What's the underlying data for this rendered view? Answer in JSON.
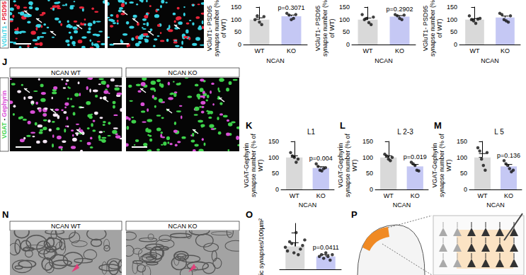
{
  "figure": {
    "panel_letters": [
      "J",
      "K",
      "L",
      "M",
      "N",
      "O",
      "P"
    ],
    "top_images": {
      "stain": "VGluT1 - PSD95",
      "stain_colors": [
        "#36d3e3",
        "#e8253a"
      ]
    },
    "j_images": {
      "labels": [
        "NCAN WT",
        "NCAN KO"
      ],
      "stain": "VGAT - Gephyrin",
      "stain_colors": [
        "#3ed14a",
        "#d94fd6"
      ]
    },
    "n_images": {
      "labels": [
        "NCAN WT",
        "NCAN KO"
      ]
    }
  },
  "chart_data": [
    {
      "type": "bar",
      "y_label": "VGluT1- PSD95 synapse number (% of WT)",
      "x_label": "NCAN",
      "categories": [
        "WT",
        "KO"
      ],
      "values": [
        100,
        113
      ],
      "errors": [
        7,
        5
      ],
      "points": [
        [
          100,
          115,
          90,
          80,
          112
        ],
        [
          125,
          118,
          100,
          105,
          120
        ]
      ],
      "colors": [
        "#d9d9d9",
        "#c5c8f4"
      ],
      "annotation": "p=0.3071",
      "ylim": [
        0,
        150
      ],
      "yticks": [
        0,
        50,
        100,
        150
      ]
    },
    {
      "type": "bar",
      "y_label": "VGluT1- PSD95 synapse number (% of WT)",
      "x_label": "NCAN",
      "categories": [
        "WT",
        "KO"
      ],
      "values": [
        100,
        112
      ],
      "errors": [
        6,
        4
      ],
      "points": [
        [
          120,
          100,
          105,
          88,
          80,
          110
        ],
        [
          120,
          115,
          105,
          100,
          118
        ]
      ],
      "colors": [
        "#d9d9d9",
        "#c5c8f4"
      ],
      "annotation": "p=0.2902",
      "ylim": [
        0,
        150
      ],
      "yticks": [
        0,
        50,
        100,
        150
      ]
    },
    {
      "type": "bar",
      "y_label": "VGluT1- PSD95 synapse number (% of WT)",
      "x_label": "NCAN",
      "categories": [
        "WT",
        "KO"
      ],
      "values": [
        100,
        108
      ],
      "errors": [
        4,
        6
      ],
      "points": [
        [
          115,
          100,
          95,
          85,
          102,
          105
        ],
        [
          125,
          120,
          100,
          95,
          90,
          115
        ]
      ],
      "colors": [
        "#d9d9d9",
        "#c5c8f4"
      ],
      "ylim": [
        0,
        150
      ],
      "yticks": [
        0,
        50,
        100,
        150
      ]
    },
    {
      "type": "bar",
      "title": "L1",
      "y_label": "VGAT-Gephyrin synapse number (% of WT)",
      "x_label": "NCAN",
      "categories": [
        "WT",
        "KO"
      ],
      "values": [
        100,
        67
      ],
      "errors": [
        5,
        4
      ],
      "points": [
        [
          115,
          105,
          100,
          85,
          95
        ],
        [
          80,
          72,
          60,
          58,
          65,
          68
        ]
      ],
      "colors": [
        "#d9d9d9",
        "#c5c8f4"
      ],
      "annotation": "p=0.004",
      "ylim": [
        0,
        150
      ],
      "yticks": [
        0,
        50,
        100,
        150
      ]
    },
    {
      "type": "bar",
      "title": "L 2-3",
      "y_label": "VGAT-Gephyrin synapse number (% of WT)",
      "x_label": "NCAN",
      "categories": [
        "WT",
        "KO"
      ],
      "values": [
        100,
        72
      ],
      "errors": [
        5,
        6
      ],
      "points": [
        [
          110,
          105,
          95,
          90,
          100
        ],
        [
          85,
          80,
          75,
          60,
          58
        ]
      ],
      "colors": [
        "#d9d9d9",
        "#c5c8f4"
      ],
      "annotation": "p=0.019",
      "ylim": [
        0,
        150
      ],
      "yticks": [
        0,
        50,
        100,
        150
      ]
    },
    {
      "type": "bar",
      "title": "L 5",
      "y_label": "VGAT-Gephyrin synapse number (% of WT)",
      "x_label": "NCAN",
      "categories": [
        "WT",
        "KO"
      ],
      "values": [
        100,
        72
      ],
      "errors": [
        12,
        6
      ],
      "points": [
        [
          130,
          120,
          95,
          75,
          60,
          115
        ],
        [
          90,
          80,
          75,
          65,
          55,
          60
        ]
      ],
      "colors": [
        "#d9d9d9",
        "#c5c8f4"
      ],
      "annotation": "p=0.136",
      "ylim": [
        0,
        150
      ],
      "yticks": [
        0,
        50,
        100,
        150
      ]
    },
    {
      "type": "bar",
      "y_label": "ic synapses/100µm²",
      "categories": [
        null,
        null
      ],
      "values": [
        12.5,
        7
      ],
      "errors": [
        2,
        1
      ],
      "points": [
        [
          12,
          10,
          15,
          14,
          9,
          20,
          8,
          11,
          13,
          16
        ],
        [
          7,
          8,
          6,
          9,
          7,
          5,
          8
        ]
      ],
      "colors": [
        "#d9d9d9",
        "#c5c8f4"
      ],
      "annotation": "p=0.0411",
      "ylim": [
        0,
        25
      ],
      "yticks": [
        0,
        10,
        20
      ],
      "tick_labels": false
    }
  ]
}
